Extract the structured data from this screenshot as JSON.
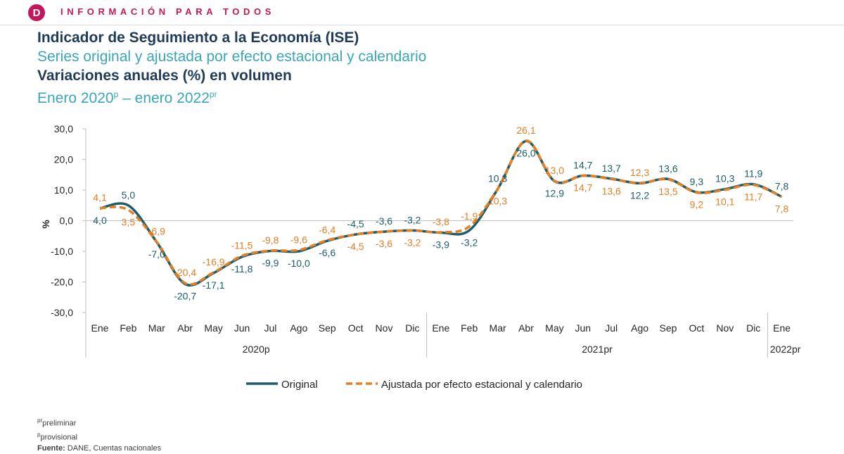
{
  "banner": {
    "logo_letter": "D",
    "text": "INFORMACIÓN PARA TODOS"
  },
  "header": {
    "title": "Indicador de Seguimiento a la Economía (ISE)",
    "subtitle": "Series original y ajustada por efecto estacional y calendario",
    "title2": "Variaciones anuales (%) en volumen",
    "period_start": "Enero 2020",
    "period_start_sup": "p",
    "period_sep": " – ",
    "period_end": "enero 2022",
    "period_end_sup": "pr"
  },
  "chart_data": {
    "type": "line",
    "ylabel": "%",
    "ylim": [
      -30,
      30
    ],
    "yticks": [
      "30,0",
      "20,0",
      "10,0",
      "0,0",
      "-10,0",
      "-20,0",
      "-30,0"
    ],
    "ytick_values": [
      30,
      20,
      10,
      0,
      -10,
      -20,
      -30
    ],
    "categories": [
      "Ene",
      "Feb",
      "Mar",
      "Abr",
      "May",
      "Jun",
      "Jul",
      "Ago",
      "Sep",
      "Oct",
      "Nov",
      "Dic",
      "Ene",
      "Feb",
      "Mar",
      "Abr",
      "May",
      "Jun",
      "Jul",
      "Ago",
      "Sep",
      "Oct",
      "Nov",
      "Dic",
      "Ene"
    ],
    "year_groups": [
      {
        "label": "2020p",
        "start": 0,
        "end": 11
      },
      {
        "label": "2021pr",
        "start": 12,
        "end": 23
      },
      {
        "label": "2022pr",
        "start": 24,
        "end": 24
      }
    ],
    "series": [
      {
        "name": "Original",
        "color": "#1b5e6b",
        "style": "solid",
        "values": [
          4.0,
          5.0,
          -7.0,
          -20.7,
          -17.1,
          -11.8,
          -9.9,
          -10.0,
          -6.6,
          -4.5,
          -3.6,
          -3.2,
          -3.9,
          -3.2,
          10.3,
          26.0,
          12.9,
          14.7,
          13.7,
          12.2,
          13.6,
          9.3,
          10.3,
          11.9,
          7.8
        ],
        "labels": [
          "4,0",
          "5,0",
          "-7,0",
          "-20,7",
          "-17,1",
          "-11,8",
          "-9,9",
          "-10,0",
          "-6,6",
          "-4,5",
          "-3,6",
          "-3,2",
          "-3,9",
          "-3,2",
          "10,3",
          "26,0",
          "12,9",
          "14,7",
          "13,7",
          "12,2",
          "13,6",
          "9,3",
          "10,3",
          "11,9",
          "7,8"
        ]
      },
      {
        "name": "Ajustada por efecto estacional y calendario",
        "color": "#e67e22",
        "style": "dashed",
        "values": [
          4.1,
          3.5,
          -6.9,
          -20.4,
          -16.9,
          -11.5,
          -9.8,
          -9.6,
          -6.4,
          -4.5,
          -3.6,
          -3.2,
          -3.8,
          -1.9,
          10.3,
          26.1,
          13.0,
          14.7,
          13.6,
          12.3,
          13.5,
          9.2,
          10.1,
          11.7,
          7.8
        ],
        "labels": [
          "4,1",
          "3,5",
          "-6,9",
          "-20,4",
          "-16,9",
          "-11,5",
          "-9,8",
          "-9,6",
          "-6,4",
          "-4,5",
          "-3,6",
          "-3,2",
          "-3,8",
          "-1,9",
          "10,3",
          "26,1",
          "13,0",
          "14,7",
          "13,6",
          "12,3",
          "13,5",
          "9,2",
          "10,1",
          "11,7",
          "7,8"
        ]
      }
    ]
  },
  "footnotes": {
    "pr_sup": "pr",
    "pr_text": "preliminar",
    "p_sup": "p",
    "p_text": "provisional",
    "source_label": "Fuente:",
    "source_text": " DANE, Cuentas nacionales"
  }
}
